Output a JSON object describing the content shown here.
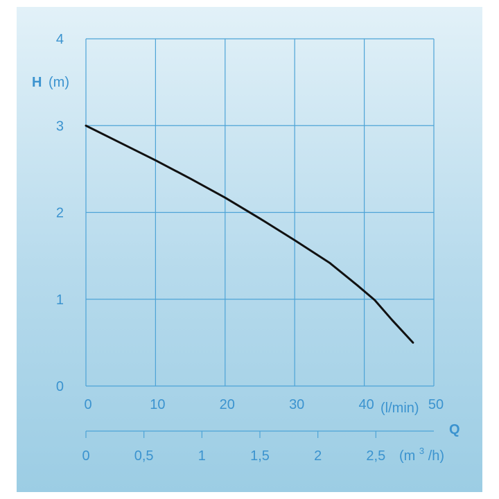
{
  "chart_data": {
    "type": "line",
    "ylabel_symbol": "H",
    "ylabel_unit": "(m)",
    "xlabel_symbol": "Q",
    "x_unit": "(l/min)",
    "x2_unit_base": "(m",
    "x2_unit_sup": "3",
    "x2_unit_tail": "/h)",
    "xlim": [
      0,
      50
    ],
    "ylim": [
      0,
      4
    ],
    "x_ticks": [
      "0",
      "10",
      "20",
      "30",
      "40",
      "50"
    ],
    "y_ticks": [
      "0",
      "1",
      "2",
      "3",
      "4"
    ],
    "x2_ticks": [
      "0",
      "0,5",
      "1",
      "1,5",
      "2",
      "2,5"
    ],
    "x2_tick_values": [
      0,
      0.5,
      1,
      1.5,
      2,
      2.5
    ],
    "x2_per_x": 0.06,
    "grid": true,
    "series": [
      {
        "x": [
          0,
          5,
          10,
          15,
          20,
          25,
          30,
          35,
          39,
          41.5,
          44,
          47
        ],
        "y": [
          3.0,
          2.8,
          2.6,
          2.39,
          2.17,
          1.93,
          1.68,
          1.42,
          1.16,
          0.99,
          0.76,
          0.5
        ]
      }
    ]
  },
  "colors": {
    "axis": "#3b93cf",
    "grid": "#4da3d6",
    "curve": "#111111"
  }
}
